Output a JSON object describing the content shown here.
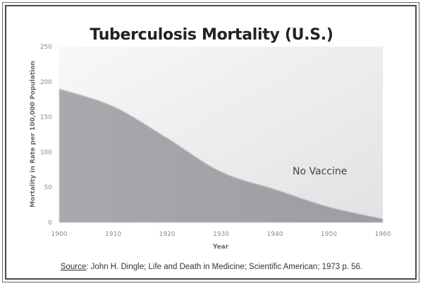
{
  "chart_data": {
    "type": "area",
    "title": "Tuberculosis Mortality (U.S.)",
    "xlabel": "Year",
    "ylabel": "Mortality in Rate per 100,000 Population",
    "x": [
      1900,
      1910,
      1920,
      1930,
      1940,
      1950,
      1960
    ],
    "series": [
      {
        "name": "No Vaccine",
        "values": [
          190,
          165,
          120,
          72,
          47,
          22,
          5
        ]
      }
    ],
    "xlim": [
      1900,
      1960
    ],
    "ylim": [
      0,
      250
    ],
    "xticks": [
      "1900",
      "1910",
      "1920",
      "1930",
      "1940",
      "1950",
      "1960"
    ],
    "yticks": [
      "0",
      "50",
      "100",
      "150",
      "200",
      "250"
    ],
    "annotations": [
      {
        "text": "No Vaccine",
        "x": 1948,
        "y": 72
      }
    ],
    "grid": false,
    "legend": "none",
    "colors": {
      "area": "#a3a2a8",
      "background_top": "#f6f6f6",
      "background_bottom": "#e6e6e8"
    }
  },
  "source": {
    "label": "Source",
    "text": ": John H. Dingle; Life and Death in Medicine; Scientific American; 1973 p. 56."
  }
}
